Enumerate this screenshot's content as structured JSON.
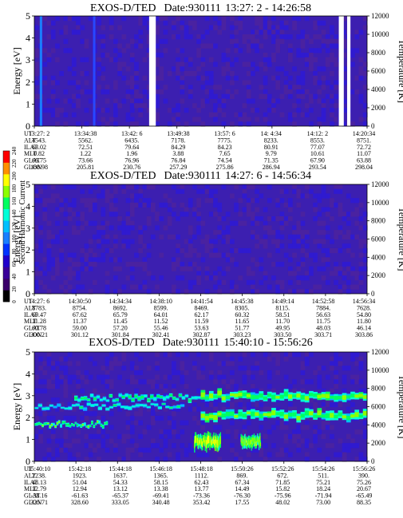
{
  "colorbar": {
    "label": "Second Harmonic Current",
    "ticks": [
      "0",
      "20",
      "40",
      "60",
      "80",
      "100",
      "120",
      "140",
      "160",
      "180",
      "200",
      "220",
      "240"
    ],
    "colors": [
      "#000000",
      "#3b006a",
      "#3a0099",
      "#2000cc",
      "#0033ff",
      "#1a7fff",
      "#00c0ff",
      "#00ffd8",
      "#00ff60",
      "#8cff00",
      "#ffff00",
      "#ff9000",
      "#ff0000"
    ]
  },
  "chart_data": [
    {
      "type": "heatmap",
      "title": "EXOS-D/TED",
      "date_label": "Date:930111",
      "time_range": "13:27: 2 - 14:26:58",
      "ylabel": "Energy [eV]",
      "ylabel_right": "Temperature [K]",
      "ylim": [
        0,
        5
      ],
      "yticks": [
        "0",
        "1",
        "2",
        "3",
        "4",
        "5"
      ],
      "ylim_right": [
        0,
        12000
      ],
      "yticks_right": [
        "0",
        "2000",
        "4000",
        "6000",
        "8000",
        "10000",
        "12000"
      ],
      "grid": false,
      "data_gaps": [
        {
          "from": 0.345,
          "to": 0.365
        },
        {
          "from": 0.915,
          "to": 0.93
        },
        {
          "from": 0.94,
          "to": 0.95
        }
      ],
      "bright_streaks": [
        {
          "x": 0.02,
          "level": "high"
        },
        {
          "x": 0.18,
          "level": "medium"
        }
      ],
      "table": {
        "labels": [
          "UT",
          "ALT",
          "ILAT",
          "MLT",
          "GLAT",
          "GLON"
        ],
        "columns": [
          [
            "13:27: 2",
            "4543.",
            "63.02",
            "0.82",
            "66.75",
            "188.98"
          ],
          [
            "13:34:38",
            "5562.",
            "72.51",
            "1.22",
            "73.66",
            "205.81"
          ],
          [
            "13:42: 6",
            "6435.",
            "79.64",
            "1.96",
            "76.96",
            "230.76"
          ],
          [
            "13:49:38",
            "7178.",
            "84.29",
            "3.88",
            "76.84",
            "257.29"
          ],
          [
            "13:57: 6",
            "7775.",
            "84.23",
            "7.65",
            "74.54",
            "275.86"
          ],
          [
            "14: 4:34",
            "8233.",
            "80.91",
            "9.79",
            "71.35",
            "286.94"
          ],
          [
            "14:12: 2",
            "8553.",
            "77.07",
            "10.61",
            "67.90",
            "293.54"
          ],
          [
            "14:20:34",
            "8751.",
            "72.72",
            "11.07",
            "63.88",
            "298.04"
          ]
        ]
      }
    },
    {
      "type": "heatmap",
      "title": "EXOS-D/TED",
      "date_label": "Date:930111",
      "time_range": "14:27: 6 - 14:56:34",
      "ylabel": "Energy [eV]",
      "ylabel_right": "Temperature [K]",
      "ylim": [
        0,
        5
      ],
      "yticks": [
        "0",
        "1",
        "2",
        "3",
        "4",
        "5"
      ],
      "ylim_right": [
        0,
        12000
      ],
      "yticks_right": [
        "0",
        "2000",
        "4000",
        "6000",
        "8000",
        "10000",
        "12000"
      ],
      "grid": false,
      "data_gaps": [],
      "bright_streaks": [],
      "table": {
        "labels": [
          "UT",
          "ALT",
          "ILAT",
          "MLT",
          "GLAT",
          "GLON"
        ],
        "columns": [
          [
            "14:27: 6",
            "8783.",
            "69.47",
            "11.28",
            "60.78",
            "300.21"
          ],
          [
            "14:30:50",
            "8754.",
            "67.62",
            "11.37",
            "59.00",
            "301.12"
          ],
          [
            "14:34:34",
            "8692.",
            "65.79",
            "11.45",
            "57.20",
            "301.84"
          ],
          [
            "14:38:10",
            "8599.",
            "64.01",
            "11.52",
            "55.46",
            "302.41"
          ],
          [
            "14:41:54",
            "8469.",
            "62.17",
            "11.59",
            "53.63",
            "302.87"
          ],
          [
            "14:45:38",
            "8305.",
            "60.32",
            "11.65",
            "51.77",
            "303.23"
          ],
          [
            "14:49:14",
            "8115.",
            "58.51",
            "11.70",
            "49.95",
            "303.50"
          ],
          [
            "14:52:58",
            "7884.",
            "56.63",
            "11.75",
            "48.03",
            "303.71"
          ],
          [
            "14:56:34",
            "7628.",
            "54.80",
            "11.80",
            "46.14",
            "303.86"
          ]
        ]
      }
    },
    {
      "type": "heatmap",
      "title": "EXOS-D/TED",
      "date_label": "Date:930111",
      "time_range": "15:40:10 - 15:56:26",
      "ylabel": "Energy [eV]",
      "ylabel_right": "Temperature [K]",
      "ylim": [
        0,
        5
      ],
      "yticks": [
        "0",
        "1",
        "2",
        "3",
        "4",
        "5"
      ],
      "ylim_right": [
        0,
        12000
      ],
      "yticks_right": [
        "0",
        "2000",
        "4000",
        "6000",
        "8000",
        "10000",
        "12000"
      ],
      "grid": false,
      "data_gaps": [],
      "bright_streaks": [],
      "bands": [
        {
          "t0": 0.0,
          "t1": 0.22,
          "center": 1.7,
          "width": 0.15,
          "level": 160
        },
        {
          "t0": 0.0,
          "t1": 0.45,
          "center": 2.5,
          "width": 0.15,
          "level": 140
        },
        {
          "t0": 0.12,
          "t1": 0.5,
          "center": 2.9,
          "width": 0.2,
          "level": 150
        },
        {
          "t0": 0.5,
          "t1": 1.0,
          "center": 3.0,
          "width": 0.35,
          "level": 170
        },
        {
          "t0": 0.5,
          "t1": 1.0,
          "center": 2.1,
          "width": 0.35,
          "level": 170
        },
        {
          "t0": 0.48,
          "t1": 0.56,
          "center": 0.9,
          "width": 0.6,
          "level": 190
        },
        {
          "t0": 0.62,
          "t1": 0.68,
          "center": 0.9,
          "width": 0.5,
          "level": 180
        }
      ],
      "table": {
        "labels": [
          "UT",
          "ALT",
          "ILAT",
          "MLT",
          "GLAT",
          "GLON"
        ],
        "columns": [
          [
            "15:40:10",
            "2238.",
            "48.13",
            "12.79",
            "-38.16",
            "325.71"
          ],
          [
            "15:42:18",
            "1923.",
            "51.04",
            "12.94",
            "-61.63",
            "328.60"
          ],
          [
            "15:44:18",
            "1637.",
            "54.33",
            "13.12",
            "-65.37",
            "333.05"
          ],
          [
            "15:46:18",
            "1365.",
            "58.15",
            "13.38",
            "-69.41",
            "340.48"
          ],
          [
            "15:48:18",
            "1112.",
            "62.43",
            "13.77",
            "-73.36",
            "353.42"
          ],
          [
            "15:50:26",
            "869.",
            "67.34",
            "14.49",
            "-76.30",
            "17.55"
          ],
          [
            "15:52:26",
            "672.",
            "71.85",
            "15.82",
            "-75.96",
            "48.02"
          ],
          [
            "15:54:26",
            "511.",
            "75.21",
            "18.24",
            "-71.94",
            "73.00"
          ],
          [
            "15:56:26",
            "390.",
            "75.26",
            "20.67",
            "-65.49",
            "88.35"
          ]
        ]
      }
    }
  ]
}
